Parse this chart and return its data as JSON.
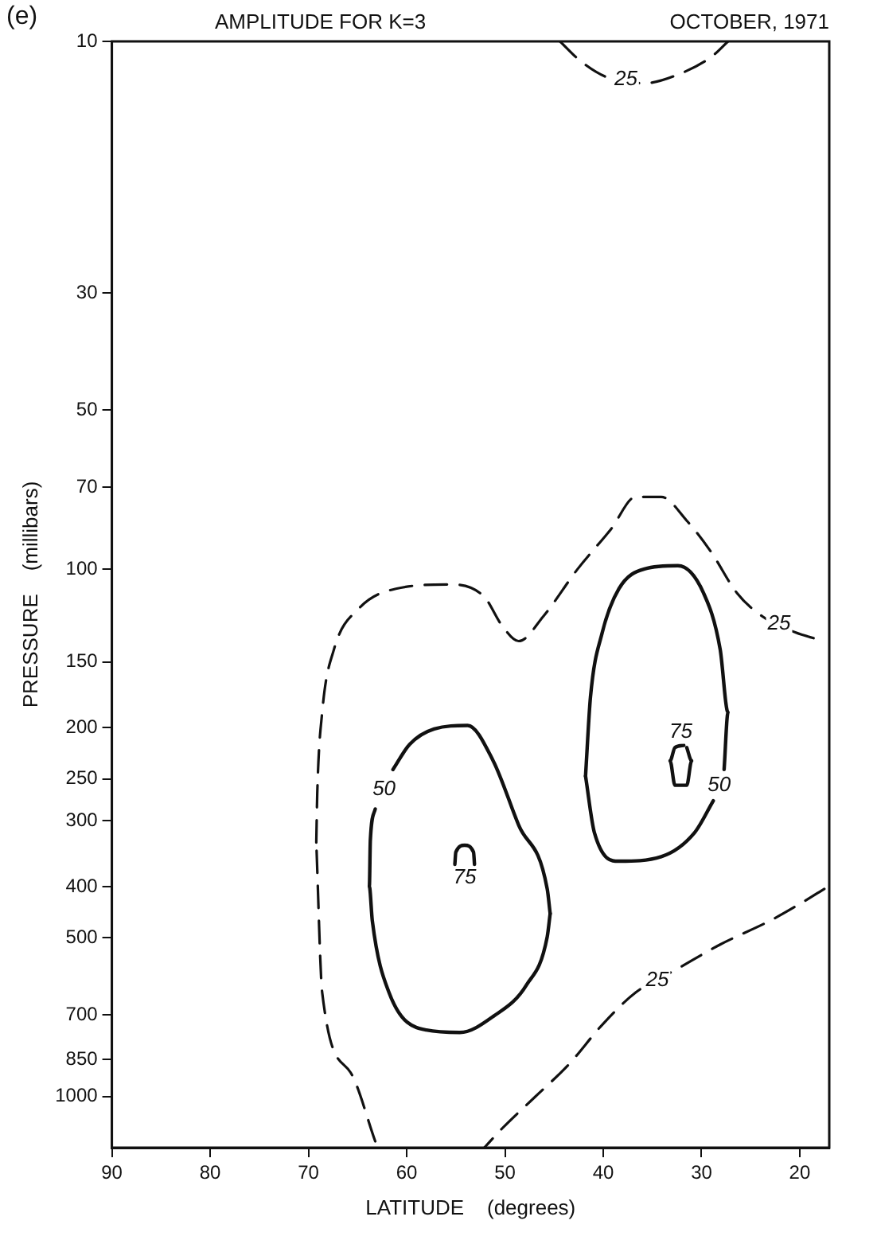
{
  "chart_data": {
    "type": "line",
    "title": "AMPLITUDE FOR K=3",
    "subtitle": "OCTOBER, 1971",
    "xlabel": "LATITUDE    (degrees)",
    "ylabel": "PRESSURE    (millibars)",
    "xlim": [
      90,
      17
    ],
    "xticks": [
      90,
      80,
      70,
      60,
      50,
      40,
      30,
      20
    ],
    "ylim": [
      1250,
      10
    ],
    "yticks": [
      10,
      30,
      50,
      70,
      100,
      150,
      200,
      250,
      300,
      400,
      500,
      700,
      850,
      1000
    ],
    "log": "y",
    "grid": false,
    "legend": false,
    "marker": "none",
    "series": [
      {
        "color": "#111111",
        "line_style": "dashed",
        "x": [
          44.4,
          42.3,
          39.6,
          35.8,
          32.1,
          29.0,
          27.3
        ],
        "values": [
          10,
          10.9,
          11.7,
          12,
          11.5,
          10.7,
          10
        ]
      },
      {
        "color": "#111111",
        "line_style": "dashed",
        "x": [
          63.2,
          65.7,
          68.6,
          69.2
        ],
        "values": [
          1216,
          901,
          635,
          330
        ]
      },
      {
        "color": "#111111",
        "line_style": "dashed",
        "x": [
          69.2,
          69.1,
          68.6,
          67.4,
          64.9,
          61.1,
          55.5,
          52.1,
          50.3,
          48.6,
          46.1,
          42.6,
          39.2,
          36.7,
          34.1,
          31.5,
          29.0,
          26.4,
          23.8,
          20.4,
          17.5
        ],
        "values": [
          330,
          266,
          187,
          142,
          119,
          109,
          107,
          113,
          128,
          137,
          123,
          100,
          84,
          73,
          73,
          81,
          93,
          111,
          123,
          132,
          137
        ]
      },
      {
        "color": "#111111",
        "line_style": "dashed",
        "x": [
          17.5,
          19.6,
          23.0,
          28.1,
          32.4,
          36.7,
          40.1,
          43.5,
          46.9,
          50.3,
          52.1
        ],
        "values": [
          404,
          427,
          464,
          515,
          572,
          635,
          731,
          869,
          1000,
          1150,
          1250
        ]
      },
      {
        "color": "#111111",
        "line_style": "solid",
        "x": [
          61.4,
          59.7,
          57.2,
          53.8,
          51.2,
          48.6,
          45.7,
          45.4
        ],
        "values": [
          240,
          215,
          201,
          198,
          231,
          306,
          404,
          450
        ]
      },
      {
        "color": "#111111",
        "line_style": "solid",
        "x": [
          45.4,
          45.7,
          47.8,
          51.2,
          54.6,
          58.0,
          61.8,
          63.5,
          63.8,
          63.7,
          63.2
        ],
        "values": [
          450,
          498,
          614,
          705,
          756,
          748,
          635,
          464,
          400,
          327,
          285
        ]
      },
      {
        "color": "#111111",
        "line_style": "solid",
        "x": [
          55.1,
          55.0,
          54.1,
          53.2,
          53.1
        ],
        "values": [
          363,
          344,
          334,
          344,
          363
        ]
      },
      {
        "color": "#111111",
        "line_style": "solid",
        "x": [
          41.8,
          41.3,
          40.1,
          38.4,
          35.8,
          32.4,
          29.8,
          28.1,
          27.3,
          27.7
        ],
        "values": [
          247,
          175,
          132,
          109,
          100,
          98.6,
          111,
          142,
          187,
          240
        ]
      },
      {
        "color": "#111111",
        "line_style": "solid",
        "x": [
          28.8,
          30.7,
          34.1,
          38.4,
          40.9,
          41.8
        ],
        "values": [
          275,
          316,
          351,
          358,
          316,
          247
        ]
      },
      {
        "color": "#111111",
        "line_style": "solid",
        "x": [
          31.8,
          32.7,
          33.2,
          32.7,
          31.5,
          31.0,
          31.5
        ],
        "values": [
          216,
          218,
          231,
          257,
          257,
          231,
          218
        ]
      }
    ],
    "annotations": [
      "(e)",
      {
        "text": "25",
        "x": 37.7,
        "y": 11.8
      },
      {
        "text": "25",
        "x": 22.1,
        "y": 127
      },
      {
        "text": "25",
        "x": 34.5,
        "y": 603
      },
      {
        "text": "50",
        "x": 62.3,
        "y": 262
      },
      {
        "text": "75",
        "x": 54.1,
        "y": 385
      },
      {
        "text": "75",
        "x": 32.1,
        "y": 204
      },
      {
        "text": "50",
        "x": 28.2,
        "y": 257
      }
    ]
  }
}
